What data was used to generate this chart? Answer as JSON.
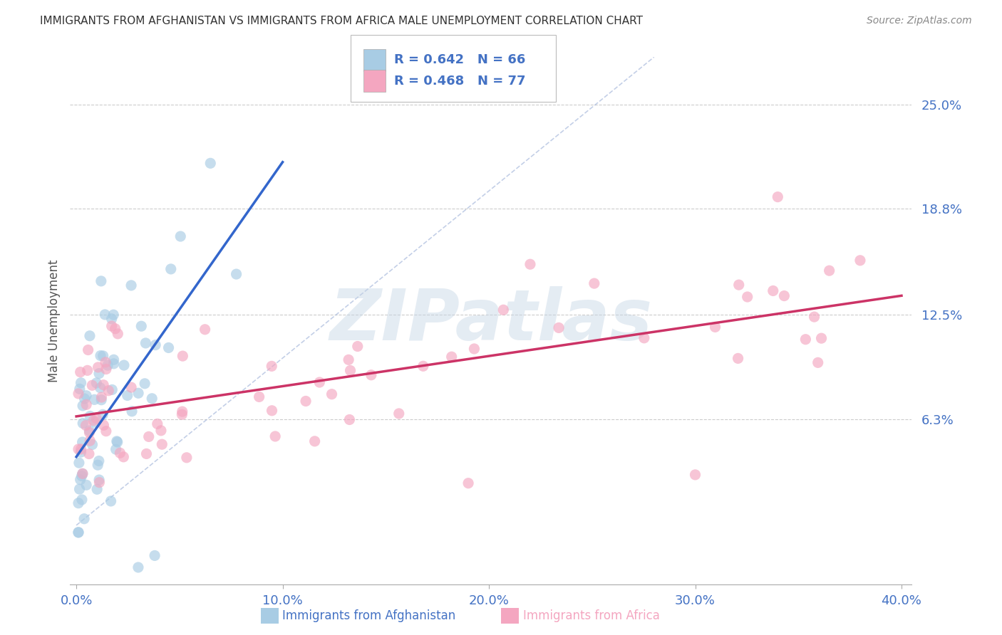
{
  "title": "IMMIGRANTS FROM AFGHANISTAN VS IMMIGRANTS FROM AFRICA MALE UNEMPLOYMENT CORRELATION CHART",
  "source": "Source: ZipAtlas.com",
  "ylabel": "Male Unemployment",
  "watermark": "ZIPatlas",
  "x_min": 0.0,
  "x_max": 0.4,
  "y_min": -0.035,
  "y_max": 0.278,
  "y_ticks": [
    0.063,
    0.125,
    0.188,
    0.25
  ],
  "y_tick_labels": [
    "6.3%",
    "12.5%",
    "18.8%",
    "25.0%"
  ],
  "x_ticks": [
    0.0,
    0.1,
    0.2,
    0.3,
    0.4
  ],
  "x_tick_labels": [
    "0.0%",
    "10.0%",
    "20.0%",
    "30.0%",
    "40.0%"
  ],
  "legend_line1_r": "R = 0.642",
  "legend_line1_n": "N = 66",
  "legend_line2_r": "R = 0.468",
  "legend_line2_n": "N = 77",
  "legend_label1": "Immigrants from Afghanistan",
  "legend_label2": "Immigrants from Africa",
  "color_afghanistan": "#a8cce4",
  "color_africa": "#f4a6c0",
  "color_reg_afghanistan": "#3366cc",
  "color_reg_africa": "#cc3366",
  "color_blue_text": "#4472c4",
  "color_grid": "#cccccc",
  "color_title": "#333333",
  "color_diag": "#aabbdd",
  "seed_afg": 101,
  "seed_afr": 202,
  "n_afg": 66,
  "n_afr": 77
}
